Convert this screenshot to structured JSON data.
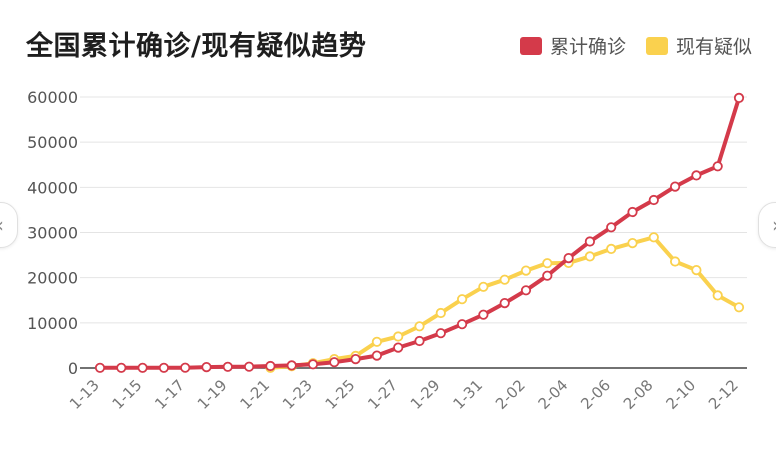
{
  "chart_data": {
    "type": "line",
    "title": "全国累计确诊/现有疑似趋势",
    "xlabel": "",
    "ylabel": "",
    "ylim": [
      0,
      60000
    ],
    "yticks": [
      "0",
      "10000",
      "20000",
      "30000",
      "40000",
      "50000",
      "60000"
    ],
    "grid": true,
    "legend_position": "top-right",
    "x": [
      "1-13",
      "1-14",
      "1-15",
      "1-16",
      "1-17",
      "1-18",
      "1-19",
      "1-20",
      "1-21",
      "1-22",
      "1-23",
      "1-24",
      "1-25",
      "1-26",
      "1-27",
      "1-28",
      "1-29",
      "1-30",
      "1-31",
      "2-01",
      "2-02",
      "2-03",
      "2-04",
      "2-05",
      "2-06",
      "2-07",
      "2-08",
      "2-09",
      "2-10",
      "2-11",
      "2-12"
    ],
    "xtick_labels": [
      "1-13",
      "1-15",
      "1-17",
      "1-19",
      "1-21",
      "1-23",
      "1-25",
      "1-27",
      "1-29",
      "1-31",
      "2-02",
      "2-04",
      "2-06",
      "2-08",
      "2-10",
      "2-12"
    ],
    "series": [
      {
        "name": "累计确诊",
        "color": "#d43a4a",
        "values": [
          41,
          41,
          41,
          45,
          62,
          198,
          275,
          291,
          440,
          571,
          830,
          1287,
          1975,
          2744,
          4515,
          5974,
          7711,
          9692,
          11791,
          14380,
          17205,
          20438,
          24324,
          28018,
          31161,
          34546,
          37198,
          40171,
          42638,
          44653,
          59804
        ]
      },
      {
        "name": "现有疑似",
        "color": "#fad14e",
        "values": [
          null,
          null,
          null,
          null,
          null,
          null,
          null,
          null,
          37,
          393,
          1072,
          1965,
          2684,
          5794,
          6973,
          9239,
          12167,
          15238,
          17988,
          19544,
          21558,
          23214,
          23260,
          24702,
          26359,
          27657,
          28942,
          23589,
          21675,
          16067,
          13435
        ]
      }
    ]
  },
  "nav": {
    "prev_icon": "chevron-left-icon",
    "next_icon": "chevron-right-icon",
    "prev_glyph": "‹",
    "next_glyph": "›"
  }
}
